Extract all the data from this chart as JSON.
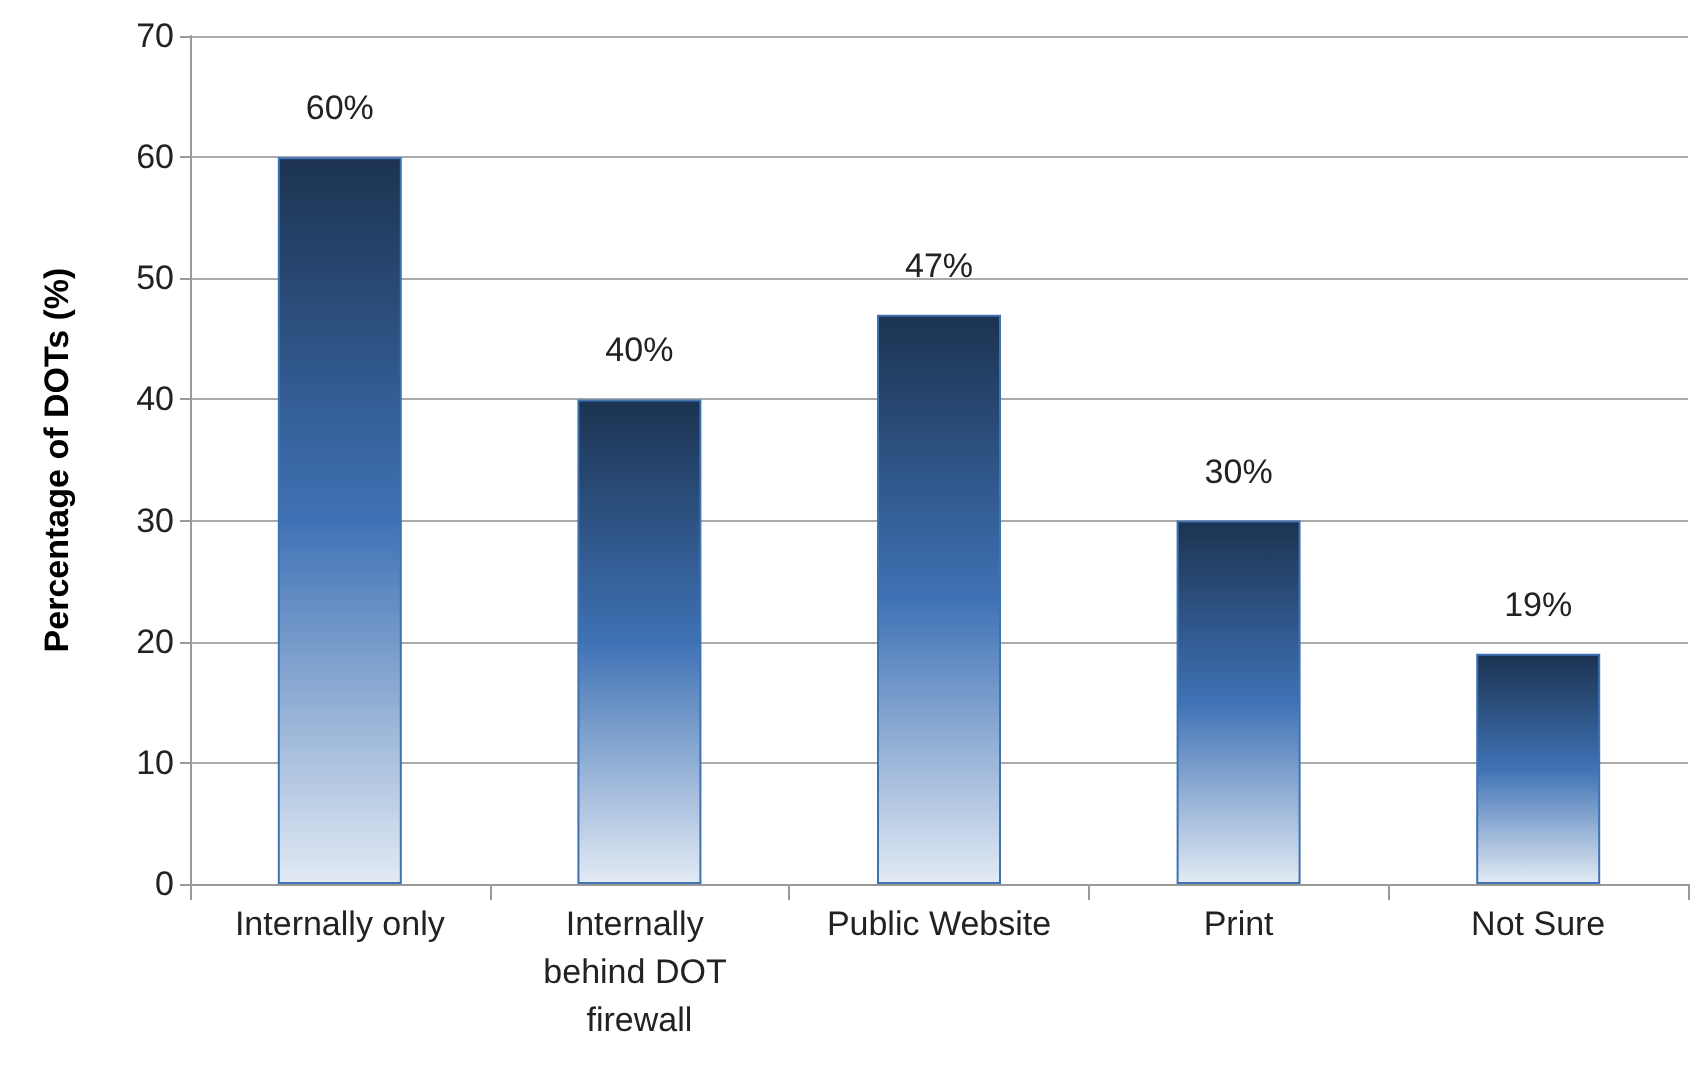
{
  "chart_data": {
    "type": "bar",
    "ylabel": "Percentage of DOTs (%)",
    "categories": [
      "Internally only",
      "Internally behind DOT firewall",
      "Public Website",
      "Print",
      "Not Sure"
    ],
    "values": [
      60,
      40,
      47,
      30,
      19
    ],
    "value_labels": [
      "60%",
      "40%",
      "47%",
      "30%",
      "19%"
    ],
    "color": "#3f72b5",
    "ylim": [
      0,
      70
    ],
    "yticks": [
      0,
      10,
      20,
      30,
      40,
      50,
      60,
      70
    ],
    "grid": "y"
  }
}
